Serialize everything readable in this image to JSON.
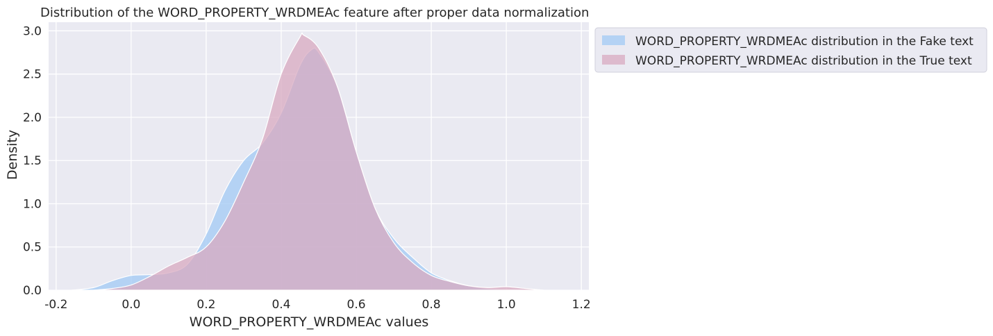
{
  "chart_data": {
    "type": "area",
    "title": "Distribution of the WORD_PROPERTY_WRDMEAc feature after proper data normalization",
    "xlabel": "WORD_PROPERTY_WRDMEAc values",
    "ylabel": "Density",
    "xlim": [
      -0.22,
      1.22
    ],
    "ylim": [
      0,
      3.1
    ],
    "x_ticks": [
      "-0.2",
      "0.0",
      "0.2",
      "0.4",
      "0.6",
      "0.8",
      "1.0",
      "1.2"
    ],
    "y_ticks": [
      "0.0",
      "0.5",
      "1.0",
      "1.5",
      "2.0",
      "2.5",
      "3.0"
    ],
    "x_tick_values": [
      -0.2,
      0.0,
      0.2,
      0.4,
      0.6,
      0.8,
      1.0,
      1.2
    ],
    "y_tick_values": [
      0.0,
      0.5,
      1.0,
      1.5,
      2.0,
      2.5,
      3.0
    ],
    "grid": true,
    "background": "#eaeaf2",
    "legend_position": "outside-upper-right",
    "series": [
      {
        "name": "WORD_PROPERTY_WRDMEAc distribution in the Fake text",
        "color": "#a1c9f4",
        "x": [
          -0.16,
          -0.1,
          -0.05,
          0.0,
          0.05,
          0.1,
          0.15,
          0.2,
          0.25,
          0.3,
          0.35,
          0.4,
          0.45,
          0.48,
          0.5,
          0.55,
          0.6,
          0.65,
          0.7,
          0.75,
          0.8,
          0.85,
          0.9,
          0.95,
          1.0,
          1.05
        ],
        "values": [
          0.0,
          0.03,
          0.11,
          0.17,
          0.18,
          0.2,
          0.3,
          0.65,
          1.15,
          1.5,
          1.7,
          2.05,
          2.6,
          2.78,
          2.75,
          2.35,
          1.6,
          0.95,
          0.6,
          0.38,
          0.2,
          0.11,
          0.05,
          0.02,
          0.01,
          0.0
        ]
      },
      {
        "name": "WORD_PROPERTY_WRDMEAc distribution in the True text",
        "color": "#d8a9c0",
        "x": [
          -0.1,
          -0.05,
          0.0,
          0.05,
          0.1,
          0.15,
          0.2,
          0.25,
          0.3,
          0.35,
          0.4,
          0.45,
          0.46,
          0.5,
          0.55,
          0.6,
          0.65,
          0.7,
          0.75,
          0.8,
          0.85,
          0.9,
          0.95,
          1.0,
          1.05,
          1.1
        ],
        "values": [
          0.0,
          0.02,
          0.06,
          0.16,
          0.28,
          0.38,
          0.5,
          0.8,
          1.25,
          1.75,
          2.5,
          2.93,
          2.95,
          2.8,
          2.35,
          1.6,
          0.95,
          0.55,
          0.32,
          0.17,
          0.1,
          0.05,
          0.03,
          0.04,
          0.02,
          0.0
        ]
      }
    ]
  }
}
